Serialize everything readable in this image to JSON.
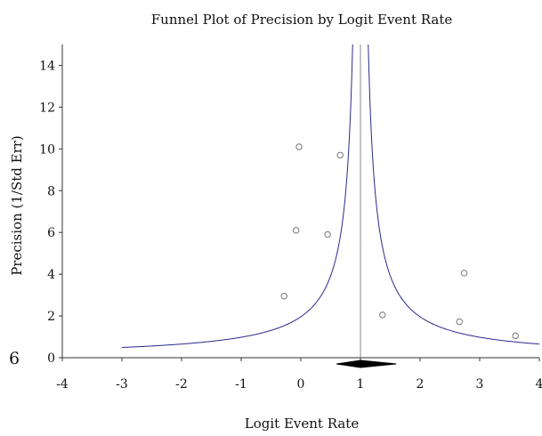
{
  "chart_data": {
    "type": "scatter",
    "title": "Funnel Plot of Precision by Logit Event Rate",
    "xlabel": "Logit Event Rate",
    "ylabel": "Precision (1/Std Err)",
    "xlim": [
      -4,
      4
    ],
    "ylim": [
      0,
      15
    ],
    "x_ticks": [
      "-4",
      "-3",
      "-2",
      "-1",
      "0",
      "1",
      "2",
      "3",
      "4"
    ],
    "y_ticks": [
      "0",
      "2",
      "4",
      "6",
      "8",
      "10",
      "12",
      "14"
    ],
    "grid": false,
    "legend": "none",
    "series": [
      {
        "points": [
          {
            "x": -0.03,
            "y": 10.1
          },
          {
            "x": 0.66,
            "y": 9.7
          },
          {
            "x": -0.08,
            "y": 6.1
          },
          {
            "x": 0.45,
            "y": 5.9
          },
          {
            "x": -0.28,
            "y": 2.95
          },
          {
            "x": 1.37,
            "y": 2.05
          },
          {
            "x": 2.74,
            "y": 4.05
          },
          {
            "x": 2.66,
            "y": 1.72
          },
          {
            "x": 3.6,
            "y": 1.05
          }
        ]
      }
    ],
    "funnel": {
      "center": 1.0,
      "z": 1.96,
      "x_start": -3,
      "x_end": 4
    },
    "summary_diamond": {
      "center": 1.0,
      "lower": 0.6,
      "upper": 1.6
    },
    "extra_text": "6",
    "colors": {
      "funnel": "#2a2a8c",
      "markers": "#777777",
      "axes": "#333333",
      "diamond": "#000000"
    }
  }
}
